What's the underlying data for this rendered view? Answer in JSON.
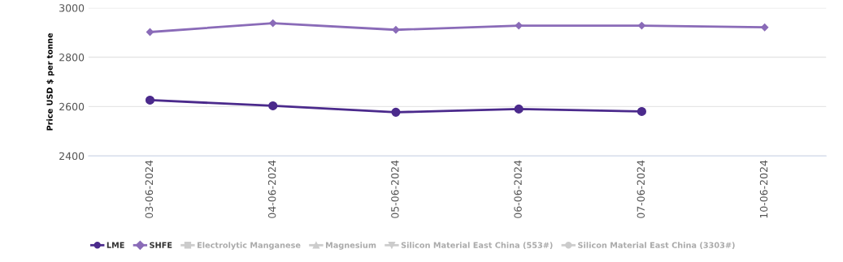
{
  "chart_data": {
    "type": "line",
    "ylabel": "Price USD $ per tonne",
    "categories": [
      "03-06-2024",
      "04-06-2024",
      "05-06-2024",
      "06-06-2024",
      "07-06-2024",
      "10-06-2024"
    ],
    "series": [
      {
        "name": "LME",
        "color": "#4b2a8c",
        "marker": "circle",
        "values": [
          2626,
          2603,
          2577,
          2590,
          2580,
          null
        ]
      },
      {
        "name": "SHFE",
        "color": "#8a6bb8",
        "marker": "diamond",
        "values": [
          2902,
          2938,
          2911,
          2928,
          2928,
          2921
        ]
      },
      {
        "name": "Electrolytic Manganese",
        "color": "#cccccc",
        "marker": "square",
        "values": [
          null,
          null,
          null,
          null,
          null,
          null
        ]
      },
      {
        "name": "Magnesium",
        "color": "#cccccc",
        "marker": "triangle",
        "values": [
          null,
          null,
          null,
          null,
          null,
          null
        ]
      },
      {
        "name": "Silicon Material East China (553#)",
        "color": "#cccccc",
        "marker": "triangle_down",
        "values": [
          null,
          null,
          null,
          null,
          null,
          null
        ]
      },
      {
        "name": "Silicon Material East China (3303#)",
        "color": "#cccccc",
        "marker": "circle",
        "values": [
          null,
          null,
          null,
          null,
          null,
          null
        ]
      }
    ],
    "ylim": [
      2400,
      3000
    ],
    "yticks": [
      2400,
      2600,
      2800,
      3000
    ],
    "grid": "y",
    "legend": "bottom left"
  }
}
